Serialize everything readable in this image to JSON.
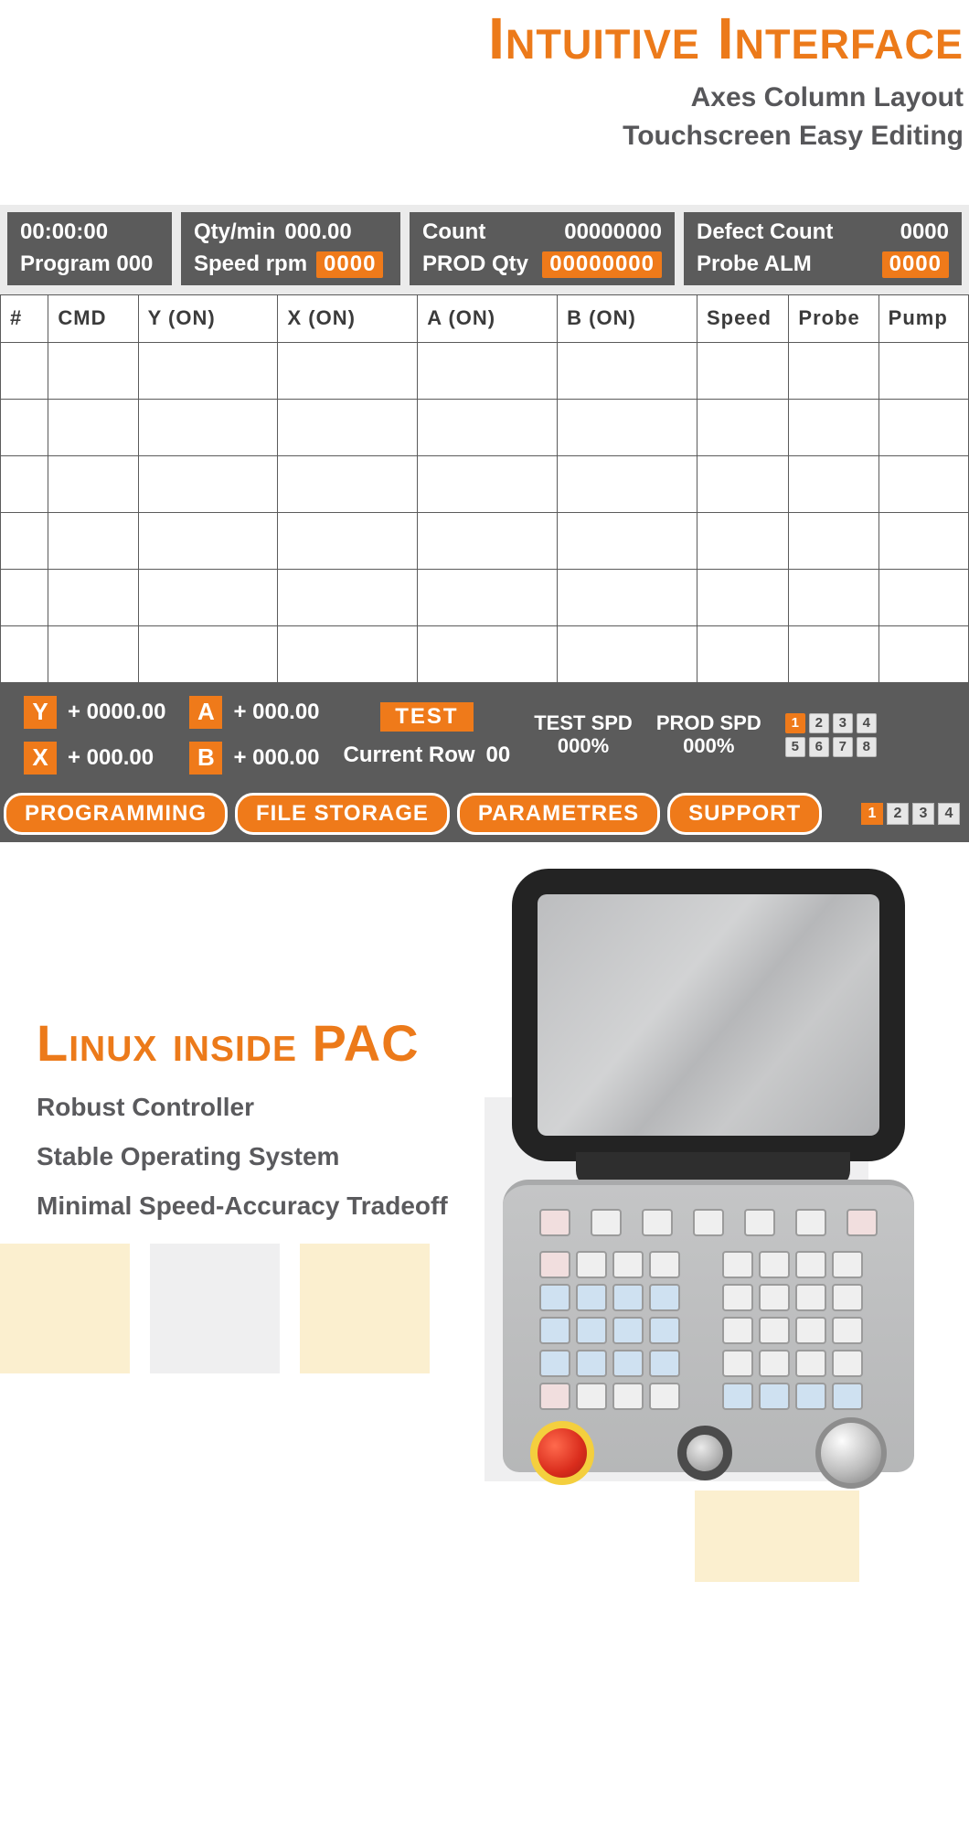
{
  "colors": {
    "orange": "#ec7a1a",
    "panel_grey": "#5b5b5b",
    "bg_grey": "#ebebeb",
    "text_grey": "#57575a",
    "pastel_yellow": "#fbefcf",
    "pastel_grey": "#efeff0",
    "key_blue": "#cfe1f1",
    "key_pink": "#f1dede",
    "estop_red": "#d92c1c",
    "estop_ring": "#f4cf3e"
  },
  "headline": {
    "title": "Intuitive Interface",
    "sub1": "Axes Column Layout",
    "sub2": "Touchscreen Easy Editing",
    "title_fontsize": 64,
    "sub_fontsize": 30
  },
  "panel": {
    "top_cells": {
      "cell1": {
        "line1": "00:00:00",
        "line2": "Program 000"
      },
      "cell2": {
        "row1_label": "Qty/min",
        "row1_value": "000.00",
        "row2_label": "Speed rpm",
        "row2_value": "0000",
        "row2_highlight": true
      },
      "cell3": {
        "row1_label": "Count",
        "row1_value": "00000000",
        "row2_label": "PROD Qty",
        "row2_value": "00000000",
        "row2_highlight": true
      },
      "cell4": {
        "row1_label": "Defect Count",
        "row1_value": "0000",
        "row2_label": "Probe ALM",
        "row2_value": "0000",
        "row2_highlight": true
      }
    },
    "table": {
      "headers": [
        "#",
        "CMD",
        "Y (ON)",
        "X (ON)",
        "A (ON)",
        "B (ON)",
        "Speed",
        "Probe",
        "Pump"
      ],
      "empty_rows": 6
    },
    "status": {
      "axes": [
        {
          "letter": "Y",
          "value": "+ 0000.00"
        },
        {
          "letter": "X",
          "value": "+ 000.00"
        },
        {
          "letter": "A",
          "value": "+ 000.00"
        },
        {
          "letter": "B",
          "value": "+ 000.00"
        }
      ],
      "test_label": "TEST",
      "current_row_label": "Current Row",
      "current_row_value": "00",
      "test_spd_label": "TEST SPD",
      "test_spd_value": "000%",
      "prod_spd_label": "PROD SPD",
      "prod_spd_value": "000%",
      "mini_keys": [
        "1",
        "2",
        "3",
        "4",
        "5",
        "6",
        "7",
        "8"
      ],
      "mini_highlight_index": 0
    },
    "footer": {
      "buttons": [
        "PROGRAMMING",
        "FILE STORAGE",
        "PARAMETRES",
        "SUPPORT"
      ],
      "mini_keys": [
        "1",
        "2",
        "3",
        "4"
      ],
      "mini_highlight_index": 0
    }
  },
  "linux": {
    "title": "Linux inside PAC",
    "bullets": [
      "Robust Controller",
      "Stable Operating System",
      "Minimal Speed-Accuracy Tradeoff"
    ],
    "title_fontsize": 56,
    "bullet_fontsize": 28
  },
  "cnc_illustration": {
    "fn_keys": 7,
    "fn_pink_positions": [
      0,
      6
    ],
    "keypad_rows": 5,
    "keypad_cols": 9,
    "gap_column": 4,
    "blue_positions": [
      9,
      10,
      11,
      12,
      18,
      19,
      20,
      21,
      27,
      28,
      29,
      30,
      40,
      41,
      42,
      43,
      44
    ],
    "pink_positions": [
      0,
      36
    ]
  }
}
